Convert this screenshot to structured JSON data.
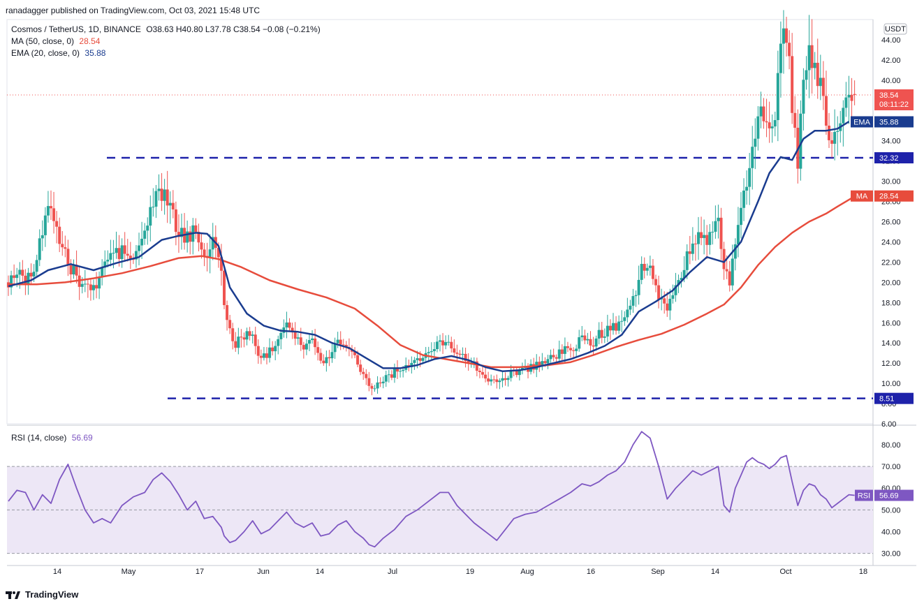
{
  "header": {
    "published": "ranadagger published on TradingView.com, Oct 03, 2021 15:48 UTC"
  },
  "legend": {
    "symbol": "Cosmos / TetherUS, 1D, BINANCE",
    "ohlc": "O38.63  H40.80  L37.78  C38.54  −0.08 (−0.21%)",
    "ma_label": "MA (50, close, 0)",
    "ma_value": "28.54",
    "ema_label": "EMA (20, close, 0)",
    "ema_value": "35.88"
  },
  "rsi_legend": {
    "label": "RSI (14, close)",
    "value": "56.69"
  },
  "footer": {
    "brand": "TradingView"
  },
  "colors": {
    "up": "#26a69a",
    "down": "#ef5350",
    "ma": "#e74c3c",
    "ema": "#1a3c8f",
    "level": "#1e22aa",
    "rsi": "#7e57c2",
    "rsi_band": "#ede7f6",
    "price_tag": "#ef5350"
  },
  "chart_data": [
    {
      "type": "candlestick",
      "title": "Cosmos / TetherUS, 1D, BINANCE",
      "unit_badge": "USDT",
      "ylim": [
        6,
        46
      ],
      "y_ticks": [
        "44.00",
        "42.00",
        "40.00",
        "38.00",
        "36.00",
        "34.00",
        "32.00",
        "30.00",
        "28.00",
        "26.00",
        "24.00",
        "22.00",
        "20.00",
        "18.00",
        "16.00",
        "14.00",
        "12.00",
        "10.00",
        "8.00",
        "6.00"
      ],
      "x_ticks": [
        "14",
        "May",
        "17",
        "Jun",
        "14",
        "Jul",
        "19",
        "Aug",
        "16",
        "Sep",
        "14",
        "Oct",
        "18"
      ],
      "tag_labels": {
        "price": "38.54",
        "countdown": "08:11:22",
        "ema": "EMA",
        "ema_value": "35.88",
        "level_high": "32.32",
        "ma": "MA",
        "ma_value": "28.54",
        "level_low": "8.51"
      },
      "levels": [
        32.32,
        8.51
      ],
      "last_price": 38.54,
      "close_path": [
        [
          0,
          20.0
        ],
        [
          3,
          21.2
        ],
        [
          6,
          20.5
        ],
        [
          9,
          21.8
        ],
        [
          12,
          24.8
        ],
        [
          15,
          27.9
        ],
        [
          18,
          24.2
        ],
        [
          21,
          21.6
        ],
        [
          24,
          20.5
        ],
        [
          27,
          19.8
        ],
        [
          30,
          19.2
        ],
        [
          33,
          21.2
        ],
        [
          36,
          22.8
        ],
        [
          40,
          23.2
        ],
        [
          44,
          22.1
        ],
        [
          48,
          25.0
        ],
        [
          51,
          28.0
        ],
        [
          54,
          29.2
        ],
        [
          57,
          27.2
        ],
        [
          60,
          25.0
        ],
        [
          63,
          24.0
        ],
        [
          66,
          26.0
        ],
        [
          69,
          22.5
        ],
        [
          72,
          23.5
        ],
        [
          75,
          22.0
        ],
        [
          76,
          17.5
        ],
        [
          78,
          15.0
        ],
        [
          80,
          13.8
        ],
        [
          83,
          15.0
        ],
        [
          86,
          14.5
        ],
        [
          89,
          12.5
        ],
        [
          92,
          13.2
        ],
        [
          95,
          14.8
        ],
        [
          98,
          16.2
        ],
        [
          101,
          14.8
        ],
        [
          104,
          13.5
        ],
        [
          107,
          14.3
        ],
        [
          110,
          12.0
        ],
        [
          113,
          12.8
        ],
        [
          116,
          14.2
        ],
        [
          119,
          14.0
        ],
        [
          122,
          12.5
        ],
        [
          125,
          11.0
        ],
        [
          127,
          9.8
        ],
        [
          129,
          9.6
        ],
        [
          132,
          10.5
        ],
        [
          136,
          11.2
        ],
        [
          140,
          11.7
        ],
        [
          144,
          12.2
        ],
        [
          148,
          13.0
        ],
        [
          152,
          14.0
        ],
        [
          155,
          14.2
        ],
        [
          158,
          13.1
        ],
        [
          161,
          12.4
        ],
        [
          164,
          11.8
        ],
        [
          167,
          11.0
        ],
        [
          170,
          10.2
        ],
        [
          172,
          9.9
        ],
        [
          175,
          10.6
        ],
        [
          178,
          11.2
        ],
        [
          182,
          11.5
        ],
        [
          186,
          11.9
        ],
        [
          190,
          12.4
        ],
        [
          194,
          12.9
        ],
        [
          198,
          13.6
        ],
        [
          202,
          14.2
        ],
        [
          205,
          13.8
        ],
        [
          208,
          14.7
        ],
        [
          211,
          15.3
        ],
        [
          214,
          15.8
        ],
        [
          217,
          17.0
        ],
        [
          220,
          18.2
        ],
        [
          223,
          21.5
        ],
        [
          226,
          20.8
        ],
        [
          229,
          18.5
        ],
        [
          232,
          17.5
        ],
        [
          235,
          19.5
        ],
        [
          238,
          21.5
        ],
        [
          241,
          24.5
        ],
        [
          244,
          24.2
        ],
        [
          247,
          24.2
        ],
        [
          250,
          25.5
        ],
        [
          252,
          21.5
        ],
        [
          254,
          20.0
        ],
        [
          256,
          24.5
        ],
        [
          258,
          27.0
        ],
        [
          260,
          30.0
        ],
        [
          262,
          32.5
        ],
        [
          264,
          35.8
        ],
        [
          266,
          37.0
        ],
        [
          268,
          35.5
        ],
        [
          270,
          37.0
        ],
        [
          272,
          42.0
        ],
        [
          274,
          44.5
        ],
        [
          276,
          37.5
        ],
        [
          278,
          31.2
        ],
        [
          280,
          39.0
        ],
        [
          282,
          42.8
        ],
        [
          284,
          41.2
        ],
        [
          286,
          39.5
        ],
        [
          288,
          36.0
        ],
        [
          290,
          34.0
        ],
        [
          292,
          35.5
        ],
        [
          294,
          36.8
        ],
        [
          296,
          38.5
        ],
        [
          298,
          38.6
        ]
      ],
      "ema_path": [
        [
          0,
          19.6
        ],
        [
          8,
          20.2
        ],
        [
          14,
          21.2
        ],
        [
          22,
          21.8
        ],
        [
          30,
          21.2
        ],
        [
          38,
          21.9
        ],
        [
          46,
          22.5
        ],
        [
          54,
          24.2
        ],
        [
          60,
          24.6
        ],
        [
          66,
          24.9
        ],
        [
          70,
          24.8
        ],
        [
          74,
          23.6
        ],
        [
          78,
          19.5
        ],
        [
          84,
          16.9
        ],
        [
          90,
          15.7
        ],
        [
          96,
          15.2
        ],
        [
          102,
          15.1
        ],
        [
          108,
          14.8
        ],
        [
          114,
          14.0
        ],
        [
          120,
          13.5
        ],
        [
          126,
          12.5
        ],
        [
          132,
          11.5
        ],
        [
          138,
          11.5
        ],
        [
          144,
          11.8
        ],
        [
          150,
          12.4
        ],
        [
          156,
          12.7
        ],
        [
          162,
          12.3
        ],
        [
          168,
          11.6
        ],
        [
          174,
          11.2
        ],
        [
          180,
          11.3
        ],
        [
          186,
          11.6
        ],
        [
          192,
          12.0
        ],
        [
          198,
          12.4
        ],
        [
          204,
          13.0
        ],
        [
          210,
          13.7
        ],
        [
          216,
          14.8
        ],
        [
          222,
          17.1
        ],
        [
          228,
          18.1
        ],
        [
          234,
          19.2
        ],
        [
          240,
          21.0
        ],
        [
          246,
          22.5
        ],
        [
          252,
          22.0
        ],
        [
          258,
          24.0
        ],
        [
          264,
          28.0
        ],
        [
          268,
          30.8
        ],
        [
          272,
          32.4
        ],
        [
          276,
          32.1
        ],
        [
          280,
          34.2
        ],
        [
          284,
          35.0
        ],
        [
          288,
          35.0
        ],
        [
          292,
          35.2
        ],
        [
          296,
          35.9
        ]
      ],
      "ma_path": [
        [
          0,
          19.8
        ],
        [
          10,
          19.8
        ],
        [
          20,
          20.0
        ],
        [
          30,
          20.4
        ],
        [
          40,
          20.9
        ],
        [
          50,
          21.6
        ],
        [
          60,
          22.4
        ],
        [
          68,
          22.6
        ],
        [
          74,
          22.3
        ],
        [
          82,
          21.5
        ],
        [
          92,
          20.2
        ],
        [
          102,
          19.3
        ],
        [
          112,
          18.5
        ],
        [
          122,
          17.4
        ],
        [
          130,
          15.7
        ],
        [
          138,
          13.8
        ],
        [
          146,
          12.8
        ],
        [
          154,
          12.4
        ],
        [
          162,
          12.0
        ],
        [
          170,
          11.6
        ],
        [
          180,
          11.6
        ],
        [
          190,
          11.8
        ],
        [
          198,
          12.1
        ],
        [
          206,
          12.8
        ],
        [
          214,
          13.6
        ],
        [
          222,
          14.3
        ],
        [
          230,
          14.9
        ],
        [
          238,
          15.8
        ],
        [
          246,
          16.9
        ],
        [
          252,
          17.8
        ],
        [
          258,
          19.5
        ],
        [
          264,
          21.7
        ],
        [
          270,
          23.5
        ],
        [
          276,
          24.9
        ],
        [
          282,
          26.0
        ],
        [
          288,
          26.8
        ],
        [
          292,
          27.5
        ],
        [
          298,
          28.5
        ]
      ],
      "rsi_panel": {
        "ylim": [
          27,
          88
        ],
        "y_ticks": [
          "80.00",
          "70.00",
          "60.00",
          "50.00",
          "40.00",
          "30.00"
        ],
        "band": [
          30,
          70
        ],
        "last": 56.69,
        "series": [
          [
            0,
            54
          ],
          [
            3,
            59
          ],
          [
            6,
            58
          ],
          [
            9,
            50
          ],
          [
            12,
            57
          ],
          [
            15,
            53
          ],
          [
            18,
            64
          ],
          [
            21,
            71
          ],
          [
            24,
            60
          ],
          [
            27,
            50
          ],
          [
            30,
            44
          ],
          [
            33,
            46
          ],
          [
            36,
            44
          ],
          [
            40,
            52
          ],
          [
            44,
            56
          ],
          [
            48,
            58
          ],
          [
            51,
            64
          ],
          [
            54,
            67
          ],
          [
            57,
            63
          ],
          [
            60,
            57
          ],
          [
            63,
            50
          ],
          [
            66,
            54
          ],
          [
            69,
            46
          ],
          [
            72,
            47
          ],
          [
            75,
            42
          ],
          [
            76,
            38
          ],
          [
            78,
            35
          ],
          [
            80,
            36
          ],
          [
            83,
            40
          ],
          [
            86,
            45
          ],
          [
            89,
            39
          ],
          [
            92,
            41
          ],
          [
            95,
            45
          ],
          [
            98,
            49
          ],
          [
            101,
            44
          ],
          [
            104,
            42
          ],
          [
            107,
            44
          ],
          [
            110,
            38
          ],
          [
            113,
            39
          ],
          [
            116,
            43
          ],
          [
            119,
            45
          ],
          [
            122,
            40
          ],
          [
            125,
            37
          ],
          [
            127,
            34
          ],
          [
            129,
            33
          ],
          [
            132,
            37
          ],
          [
            136,
            41
          ],
          [
            140,
            47
          ],
          [
            144,
            50
          ],
          [
            148,
            54
          ],
          [
            152,
            58
          ],
          [
            155,
            58
          ],
          [
            158,
            52
          ],
          [
            161,
            48
          ],
          [
            164,
            44
          ],
          [
            167,
            41
          ],
          [
            170,
            38
          ],
          [
            172,
            36
          ],
          [
            175,
            41
          ],
          [
            178,
            46
          ],
          [
            182,
            48
          ],
          [
            186,
            49
          ],
          [
            190,
            52
          ],
          [
            194,
            55
          ],
          [
            198,
            58
          ],
          [
            202,
            62
          ],
          [
            205,
            61
          ],
          [
            208,
            63
          ],
          [
            211,
            66
          ],
          [
            214,
            68
          ],
          [
            217,
            72
          ],
          [
            220,
            80
          ],
          [
            223,
            86
          ],
          [
            226,
            83
          ],
          [
            229,
            70
          ],
          [
            232,
            55
          ],
          [
            235,
            60
          ],
          [
            238,
            64
          ],
          [
            241,
            68
          ],
          [
            244,
            66
          ],
          [
            247,
            68
          ],
          [
            250,
            70
          ],
          [
            252,
            52
          ],
          [
            254,
            49
          ],
          [
            256,
            60
          ],
          [
            258,
            66
          ],
          [
            260,
            72
          ],
          [
            262,
            74
          ],
          [
            264,
            72
          ],
          [
            266,
            71
          ],
          [
            268,
            69
          ],
          [
            270,
            71
          ],
          [
            272,
            74
          ],
          [
            274,
            75
          ],
          [
            276,
            63
          ],
          [
            278,
            52
          ],
          [
            280,
            59
          ],
          [
            282,
            62
          ],
          [
            284,
            61
          ],
          [
            286,
            57
          ],
          [
            288,
            55
          ],
          [
            290,
            51
          ],
          [
            292,
            53
          ],
          [
            294,
            55
          ],
          [
            296,
            57
          ],
          [
            298,
            56.7
          ]
        ]
      }
    }
  ]
}
